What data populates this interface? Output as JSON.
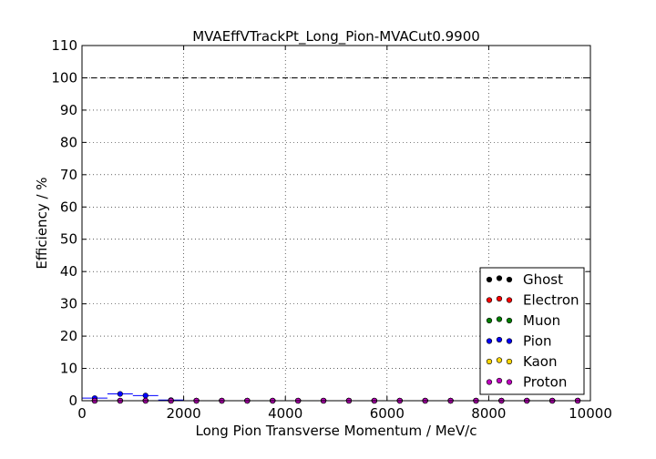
{
  "chart_data": {
    "type": "scatter",
    "title": "MVAEffVTrackPt_Long_Pion-MVACut0.9900",
    "xlabel": "Long Pion Transverse Momentum / MeV/c",
    "ylabel": "Efficiency / %",
    "xlim": [
      0,
      10000
    ],
    "ylim": [
      0,
      110
    ],
    "x_ticks": [
      "0",
      "2000",
      "4000",
      "6000",
      "8000",
      "10000"
    ],
    "y_ticks": [
      "0",
      "10",
      "20",
      "30",
      "40",
      "50",
      "60",
      "70",
      "80",
      "90",
      "100",
      "110"
    ],
    "grid": true,
    "legend_position": "lower-right",
    "reference_line": {
      "y": 100,
      "style": "dashed"
    },
    "bin_edges": [
      0,
      500,
      1000,
      1500,
      2000,
      2500,
      3000,
      3500,
      4000,
      4500,
      5000,
      5500,
      6000,
      6500,
      7000,
      7500,
      8000,
      8500,
      9000,
      9500,
      10000
    ],
    "series": [
      {
        "name": "Ghost",
        "color": "#000000",
        "values": [
          0,
          0,
          0,
          0,
          0,
          0,
          0,
          0,
          0,
          0,
          0,
          0,
          0,
          0,
          0,
          0,
          0,
          0,
          0,
          0
        ]
      },
      {
        "name": "Electron",
        "color": "#ff0000",
        "values": [
          0,
          0,
          0,
          0,
          0,
          0,
          0,
          0,
          0,
          0,
          0,
          0,
          0,
          0,
          0,
          0,
          0,
          0,
          0,
          0
        ]
      },
      {
        "name": "Muon",
        "color": "#008000",
        "values": [
          0,
          0,
          0,
          0,
          0,
          0,
          0,
          0,
          0,
          0,
          0,
          0,
          0,
          0,
          0,
          0,
          0,
          0,
          0,
          0
        ]
      },
      {
        "name": "Pion",
        "color": "#0000ff",
        "values": [
          0.8,
          2.1,
          1.6,
          0.2,
          0,
          0,
          0,
          0,
          0,
          0,
          0,
          0,
          0,
          0,
          0,
          0,
          0,
          0,
          0,
          0
        ]
      },
      {
        "name": "Kaon",
        "color": "#ffd700",
        "values": [
          0,
          0,
          0,
          0,
          0,
          0,
          0,
          0,
          0,
          0,
          0,
          0,
          0,
          0,
          0,
          0,
          0,
          0,
          0,
          0
        ]
      },
      {
        "name": "Proton",
        "color": "#bf00bf",
        "values": [
          0,
          0,
          0,
          0,
          0,
          0,
          0,
          0,
          0,
          0,
          0,
          0,
          0,
          0,
          0,
          0,
          0,
          0,
          0,
          0
        ]
      }
    ]
  }
}
